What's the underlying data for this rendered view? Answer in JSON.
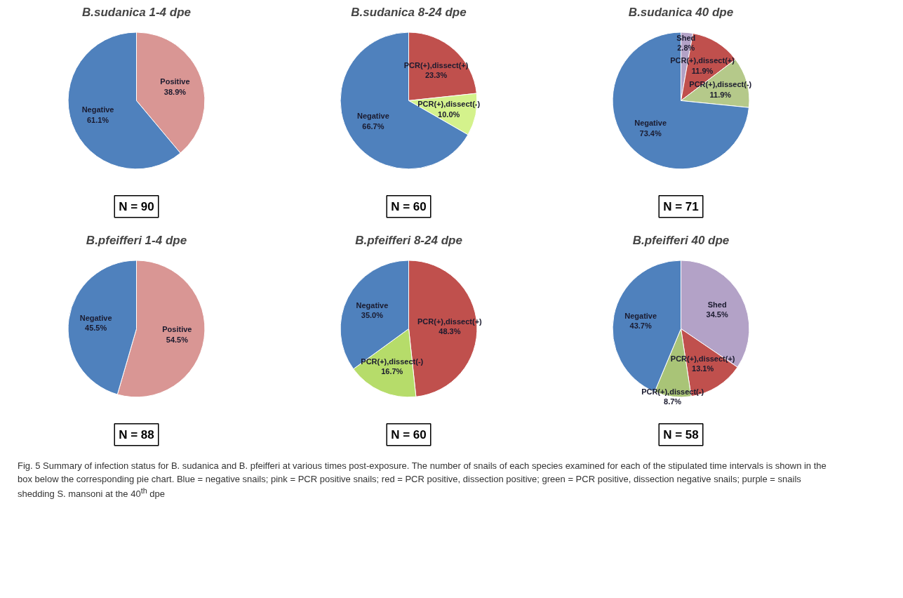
{
  "chart_data": [
    {
      "type": "pie",
      "title": "B.sudanica 1-4 dpe",
      "categories": [
        "Positive",
        "Negative"
      ],
      "values": [
        38.9,
        61.1
      ],
      "value_labels": [
        "38.9%",
        "61.1%"
      ],
      "colors": [
        "#d99694",
        "#4f81bd"
      ],
      "annotations": [
        "N = 90"
      ]
    },
    {
      "type": "pie",
      "title": "B.sudanica 8-24 dpe",
      "categories": [
        "PCR(+),dissect(+)",
        "PCR(+),dissect(-)",
        "Negative"
      ],
      "values": [
        23.3,
        10.0,
        66.7
      ],
      "value_labels": [
        "23.3%",
        "10.0%",
        "66.7%"
      ],
      "colors": [
        "#c0504d",
        "#d4f28c",
        "#4f81bd"
      ],
      "annotations": [
        "N = 60"
      ]
    },
    {
      "type": "pie",
      "title": "B.sudanica 40 dpe",
      "categories": [
        "Shed",
        "PCR(+),dissect(+)",
        "PCR(+),dissect(-)",
        "Negative"
      ],
      "values": [
        2.8,
        11.9,
        11.9,
        73.4
      ],
      "value_labels": [
        "2.8%",
        "11.9%",
        "11.9%",
        "73.4%"
      ],
      "colors": [
        "#b3a2c7",
        "#c0504d",
        "#b5c98a",
        "#4f81bd"
      ],
      "annotations": [
        "N = 71"
      ]
    },
    {
      "type": "pie",
      "title": "B.pfeifferi 1-4 dpe",
      "categories": [
        "Positive",
        "Negative"
      ],
      "values": [
        54.5,
        45.5
      ],
      "value_labels": [
        "54.5%",
        "45.5%"
      ],
      "colors": [
        "#d99694",
        "#4f81bd"
      ],
      "annotations": [
        "N = 88"
      ]
    },
    {
      "type": "pie",
      "title": "B.pfeifferi 8-24 dpe",
      "categories": [
        "PCR(+),dissect(+)",
        "PCR(+),dissect(-)",
        "Negative"
      ],
      "values": [
        48.3,
        16.7,
        35.0
      ],
      "value_labels": [
        "48.3%",
        "16.7%",
        "35.0%"
      ],
      "colors": [
        "#c0504d",
        "#b6dc6a",
        "#4f81bd"
      ],
      "annotations": [
        "N = 60"
      ]
    },
    {
      "type": "pie",
      "title": "B.pfeifferi 40 dpe",
      "categories": [
        "Shed",
        "PCR(+),dissect(+)",
        "PCR(+),dissect(-)",
        "Negative"
      ],
      "values": [
        34.5,
        13.1,
        8.7,
        43.7
      ],
      "value_labels": [
        "34.5%",
        "13.1%",
        "8.7%",
        "43.7%"
      ],
      "colors": [
        "#b3a2c7",
        "#c0504d",
        "#a9c477",
        "#4f81bd"
      ],
      "annotations": [
        "N = 58",
        "Fig. 5 Summary of infection status for B. sudanica and B. pfeifferi at various times post-exposure. The number of snails of each species examined for each of the stipulated time intervals is shown in the box below the corresponding pie chart. Blue = negative snails; pink = PCR positive snails; red = PCR positive, dissection positive; green = PCR positive, dissection negative snails; purple = snails shedding S. mansoni at the 40$^{th}$ dpe"
      ]
    }
  ]
}
